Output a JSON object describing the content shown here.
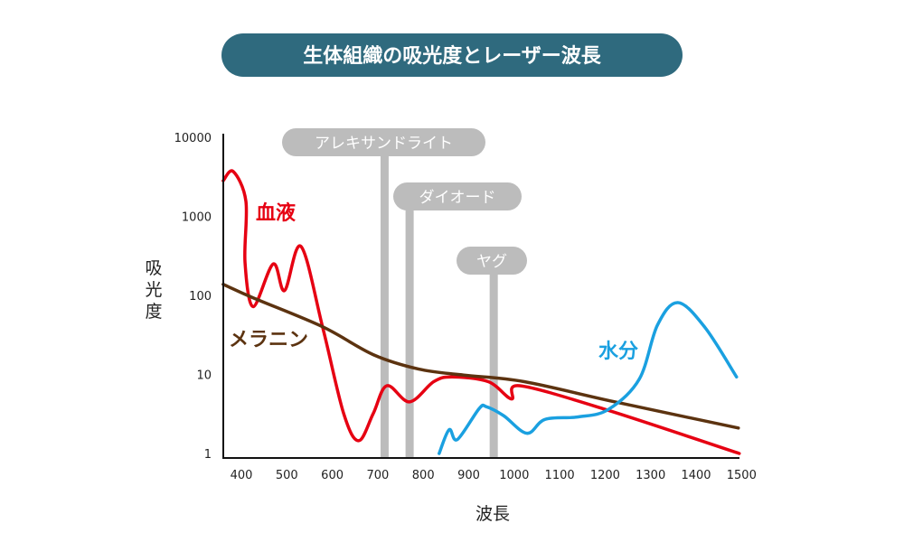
{
  "chart_data": {
    "type": "line",
    "title": "生体組織の吸光度とレーザー波長",
    "xlabel": "波長",
    "ylabel": "吸光度",
    "xlim": [
      360,
      1500
    ],
    "ylim": [
      1,
      10000
    ],
    "y_scale": "log",
    "x_ticks": [
      400,
      500,
      600,
      700,
      800,
      900,
      1000,
      1100,
      1200,
      1300,
      1400,
      1500
    ],
    "y_ticks": [
      1,
      10,
      100,
      1000,
      10000
    ],
    "y_tick_labels": [
      "1",
      "10",
      "100",
      "1000",
      "10000"
    ],
    "grid": false,
    "colors": {
      "title_bg": "#2f6a7e",
      "laser": "#bcbcbc"
    },
    "series": [
      {
        "name": "血液",
        "color": "#e60012",
        "x": [
          360,
          382,
          410,
          408,
          426,
          470,
          495,
          531,
          579,
          625,
          658,
          690,
          720,
          770,
          823,
          863,
          943,
          994,
          1012,
          1201,
          1495
        ],
        "y": [
          2820,
          3700,
          1550,
          263,
          72,
          250,
          115,
          417,
          39,
          3.2,
          1.45,
          3.2,
          7.2,
          4.5,
          8.1,
          9.3,
          8.1,
          4.9,
          7.2,
          3.6,
          1.0
        ]
      },
      {
        "name": "メラニン",
        "color": "#5c3310",
        "x": [
          360,
          426,
          579,
          690,
          790,
          889,
          1022,
          1221,
          1493
        ],
        "y": [
          138,
          93,
          40,
          17.8,
          11.7,
          9.8,
          8.1,
          4.5,
          2.1
        ]
      },
      {
        "name": "水分",
        "color": "#1aa0e0",
        "x": [
          835,
          857,
          875,
          923,
          939,
          977,
          1028,
          1068,
          1141,
          1207,
          1275,
          1315,
          1360,
          1420,
          1489
        ],
        "y": [
          1.0,
          2.0,
          1.5,
          3.7,
          3.9,
          3.0,
          1.8,
          2.7,
          2.9,
          3.6,
          8.7,
          42,
          81,
          39,
          9.3
        ]
      }
    ],
    "lasers": [
      {
        "name": "アレキサンドライト",
        "x": 715
      },
      {
        "name": "ダイオード",
        "x": 770
      },
      {
        "name": "ヤグ",
        "x": 955
      }
    ]
  }
}
